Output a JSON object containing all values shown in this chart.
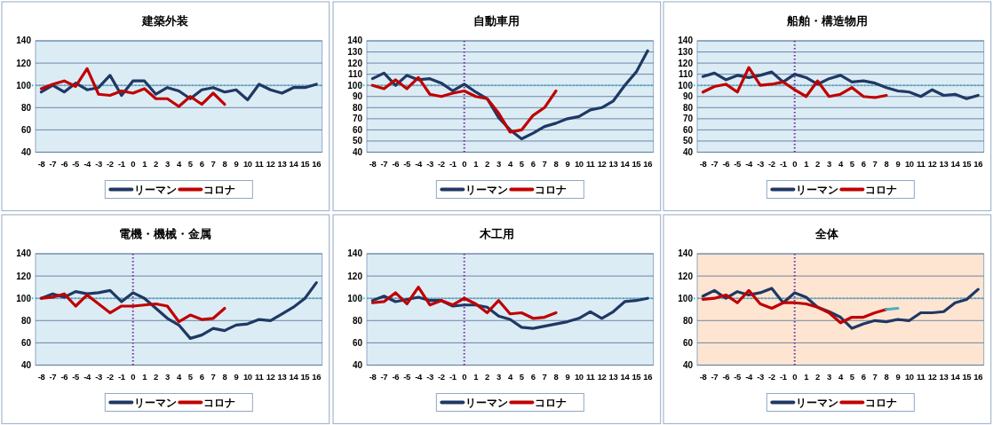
{
  "chart_data": [
    {
      "type": "line",
      "title": "建築外装",
      "x": [
        -8,
        -7,
        -6,
        -5,
        -4,
        -3,
        -2,
        -1,
        0,
        1,
        2,
        3,
        4,
        5,
        6,
        7,
        8,
        9,
        10,
        11,
        12,
        13,
        14,
        15,
        16
      ],
      "xlim": [
        -8.5,
        16.5
      ],
      "xticks": [
        -8,
        -7,
        -6,
        -5,
        -4,
        -3,
        -2,
        -1,
        0,
        1,
        2,
        3,
        4,
        5,
        6,
        7,
        8,
        9,
        10,
        11,
        12,
        13,
        14,
        15,
        16
      ],
      "ylim": [
        40,
        140
      ],
      "yticks": [
        40,
        60,
        80,
        100,
        120,
        140
      ],
      "grid": "y",
      "legend": "bottom",
      "line_style": "solid",
      "series": [
        {
          "name": "リーマン",
          "color": "#1f3864",
          "values": [
            94,
            100,
            94,
            102,
            96,
            98,
            109,
            91,
            104,
            104,
            92,
            98,
            95,
            88,
            96,
            98,
            94,
            96,
            87,
            101,
            96,
            93,
            98,
            98,
            101
          ]
        },
        {
          "name": "コロナ",
          "color": "#c00000",
          "x": [
            -8,
            -7,
            -6,
            -5,
            -4,
            -3,
            -2,
            -1,
            0,
            1,
            2,
            3,
            4,
            5,
            6,
            7,
            8
          ],
          "values": [
            97,
            101,
            104,
            99,
            115,
            92,
            91,
            95,
            93,
            97,
            88,
            88,
            81,
            90,
            83,
            93,
            83
          ]
        }
      ],
      "ref_lines": [
        {
          "axis": "y",
          "value": 100,
          "color": "#4bacc6",
          "line_style": "dotted"
        }
      ]
    },
    {
      "type": "line",
      "title": "自動車用",
      "x": [
        -8,
        -7,
        -6,
        -5,
        -4,
        -3,
        -2,
        -1,
        0,
        1,
        2,
        3,
        4,
        5,
        6,
        7,
        8,
        9,
        10,
        11,
        12,
        13,
        14,
        15,
        16
      ],
      "xlim": [
        -8.5,
        16.5
      ],
      "xticks": [
        -8,
        -7,
        -6,
        -5,
        -4,
        -3,
        -2,
        -1,
        0,
        1,
        2,
        3,
        4,
        5,
        6,
        7,
        8,
        9,
        10,
        11,
        12,
        13,
        14,
        15,
        16
      ],
      "ylim": [
        40,
        140
      ],
      "yticks": [
        40,
        50,
        60,
        70,
        80,
        90,
        100,
        110,
        120,
        130,
        140
      ],
      "grid": "y",
      "legend": "bottom",
      "line_style": "solid",
      "series": [
        {
          "name": "リーマン",
          "color": "#1f3864",
          "values": [
            106,
            111,
            100,
            109,
            105,
            106,
            102,
            95,
            101,
            94,
            88,
            71,
            60,
            52,
            57,
            63,
            66,
            70,
            72,
            78,
            80,
            86,
            100,
            112,
            131
          ]
        },
        {
          "name": "コロナ",
          "color": "#c00000",
          "x": [
            -8,
            -7,
            -6,
            -5,
            -4,
            -3,
            -2,
            -1,
            0,
            1,
            2,
            3,
            4,
            5,
            6,
            7,
            8
          ],
          "values": [
            100,
            97,
            105,
            97,
            107,
            92,
            90,
            93,
            95,
            90,
            88,
            75,
            58,
            60,
            73,
            80,
            95
          ]
        }
      ],
      "ref_lines": [
        {
          "axis": "y",
          "value": 100,
          "color": "#4bacc6",
          "line_style": "dotted"
        },
        {
          "axis": "x",
          "value": 0,
          "color": "#7030a0",
          "line_style": "dotted"
        }
      ]
    },
    {
      "type": "line",
      "title": "船舶・構造物用",
      "x": [
        -8,
        -7,
        -6,
        -5,
        -4,
        -3,
        -2,
        -1,
        0,
        1,
        2,
        3,
        4,
        5,
        6,
        7,
        8,
        9,
        10,
        11,
        12,
        13,
        14,
        15,
        16
      ],
      "xlim": [
        -8.5,
        16.5
      ],
      "xticks": [
        -8,
        -7,
        -6,
        -5,
        -4,
        -3,
        -2,
        -1,
        0,
        1,
        2,
        3,
        4,
        5,
        6,
        7,
        8,
        9,
        10,
        11,
        12,
        13,
        14,
        15,
        16
      ],
      "ylim": [
        40,
        140
      ],
      "yticks": [
        40,
        50,
        60,
        70,
        80,
        90,
        100,
        110,
        120,
        130,
        140
      ],
      "grid": "y",
      "legend": "bottom",
      "line_style": "solid",
      "series": [
        {
          "name": "リーマン",
          "color": "#1f3864",
          "values": [
            108,
            111,
            105,
            109,
            107,
            109,
            112,
            103,
            110,
            107,
            101,
            106,
            109,
            103,
            104,
            102,
            98,
            95,
            94,
            90,
            96,
            91,
            92,
            88,
            91
          ]
        },
        {
          "name": "コロナ",
          "color": "#c00000",
          "x": [
            -8,
            -7,
            -6,
            -5,
            -4,
            -3,
            -2,
            -1,
            0,
            1,
            2,
            3,
            4,
            5,
            6,
            7,
            8
          ],
          "values": [
            94,
            99,
            101,
            94,
            116,
            100,
            101,
            103,
            96,
            90,
            104,
            90,
            92,
            98,
            90,
            89,
            91
          ]
        }
      ],
      "ref_lines": [
        {
          "axis": "y",
          "value": 100,
          "color": "#4bacc6",
          "line_style": "dotted"
        },
        {
          "axis": "x",
          "value": 0,
          "color": "#7030a0",
          "line_style": "dotted"
        }
      ]
    },
    {
      "type": "line",
      "title": "電機・機械・金属",
      "x": [
        -8,
        -7,
        -6,
        -5,
        -4,
        -3,
        -2,
        -1,
        0,
        1,
        2,
        3,
        4,
        5,
        6,
        7,
        8,
        9,
        10,
        11,
        12,
        13,
        14,
        15,
        16
      ],
      "xlim": [
        -8.5,
        16.5
      ],
      "xticks": [
        -8,
        -7,
        -6,
        -5,
        -4,
        -3,
        -2,
        -1,
        0,
        1,
        2,
        3,
        4,
        5,
        6,
        7,
        8,
        9,
        10,
        11,
        12,
        13,
        14,
        15,
        16
      ],
      "ylim": [
        40,
        140
      ],
      "yticks": [
        40,
        60,
        80,
        100,
        120,
        140
      ],
      "grid": "y",
      "legend": "bottom",
      "line_style": "solid",
      "series": [
        {
          "name": "リーマン",
          "color": "#1f3864",
          "values": [
            100,
            104,
            101,
            106,
            104,
            105,
            107,
            97,
            105,
            100,
            91,
            82,
            76,
            64,
            67,
            73,
            71,
            76,
            77,
            81,
            80,
            86,
            92,
            100,
            114
          ]
        },
        {
          "name": "コロナ",
          "color": "#c00000",
          "x": [
            -8,
            -7,
            -6,
            -5,
            -4,
            -3,
            -2,
            -1,
            0,
            1,
            2,
            3,
            4,
            5,
            6,
            7,
            8
          ],
          "values": [
            100,
            101,
            104,
            93,
            103,
            95,
            87,
            93,
            93,
            94,
            95,
            93,
            79,
            85,
            81,
            82,
            91
          ]
        }
      ],
      "ref_lines": [
        {
          "axis": "y",
          "value": 100,
          "color": "#4bacc6",
          "line_style": "dotted"
        },
        {
          "axis": "x",
          "value": 0,
          "color": "#7030a0",
          "line_style": "dotted"
        }
      ]
    },
    {
      "type": "line",
      "title": "木工用",
      "x": [
        -8,
        -7,
        -6,
        -5,
        -4,
        -3,
        -2,
        -1,
        0,
        1,
        2,
        3,
        4,
        5,
        6,
        7,
        8,
        9,
        10,
        11,
        12,
        13,
        14,
        15,
        16
      ],
      "xlim": [
        -8.5,
        16.5
      ],
      "xticks": [
        -8,
        -7,
        -6,
        -5,
        -4,
        -3,
        -2,
        -1,
        0,
        1,
        2,
        3,
        4,
        5,
        6,
        7,
        8,
        9,
        10,
        11,
        12,
        13,
        14,
        15,
        16
      ],
      "ylim": [
        40,
        140
      ],
      "yticks": [
        40,
        60,
        80,
        100,
        120,
        140
      ],
      "grid": "y",
      "legend": "bottom",
      "line_style": "solid",
      "series": [
        {
          "name": "リーマン",
          "color": "#1f3864",
          "values": [
            98,
            102,
            97,
            99,
            101,
            98,
            98,
            93,
            94,
            94,
            92,
            84,
            81,
            74,
            73,
            75,
            77,
            79,
            82,
            88,
            82,
            88,
            97,
            98,
            100
          ]
        },
        {
          "name": "コロナ",
          "color": "#c00000",
          "x": [
            -8,
            -7,
            -6,
            -5,
            -4,
            -3,
            -2,
            -1,
            0,
            1,
            2,
            3,
            4,
            5,
            6,
            7,
            8
          ],
          "values": [
            96,
            97,
            105,
            95,
            110,
            94,
            98,
            94,
            100,
            95,
            87,
            98,
            86,
            87,
            82,
            83,
            87
          ]
        }
      ],
      "ref_lines": [
        {
          "axis": "y",
          "value": 100,
          "color": "#4bacc6",
          "line_style": "dotted"
        },
        {
          "axis": "x",
          "value": 0,
          "color": "#7030a0",
          "line_style": "dotted"
        }
      ]
    },
    {
      "type": "line",
      "title": "全体",
      "x": [
        -8,
        -7,
        -6,
        -5,
        -4,
        -3,
        -2,
        -1,
        0,
        1,
        2,
        3,
        4,
        5,
        6,
        7,
        8,
        9,
        10,
        11,
        12,
        13,
        14,
        15,
        16
      ],
      "xlim": [
        -8.5,
        16.5
      ],
      "xticks": [
        -8,
        -7,
        -6,
        -5,
        -4,
        -3,
        -2,
        -1,
        0,
        1,
        2,
        3,
        4,
        5,
        6,
        7,
        8,
        9,
        10,
        11,
        12,
        13,
        14,
        15,
        16
      ],
      "ylim": [
        40,
        140
      ],
      "yticks": [
        40,
        60,
        80,
        100,
        120,
        140
      ],
      "grid": "y",
      "legend": "bottom",
      "line_style": "solid",
      "series": [
        {
          "name": "リーマン",
          "color": "#1f3864",
          "values": [
            102,
            107,
            100,
            106,
            103,
            105,
            109,
            96,
            105,
            101,
            92,
            88,
            83,
            73,
            77,
            80,
            79,
            81,
            80,
            87,
            87,
            88,
            96,
            99,
            108
          ]
        },
        {
          "name": "コロナ",
          "color": "#c00000",
          "x": [
            -8,
            -7,
            -6,
            -5,
            -4,
            -3,
            -2,
            -1,
            0,
            1,
            2,
            3,
            4,
            5,
            6,
            7,
            8
          ],
          "values": [
            99,
            100,
            103,
            96,
            107,
            95,
            91,
            96,
            96,
            95,
            92,
            87,
            78,
            83,
            83,
            87,
            90
          ]
        },
        {
          "color": "#4bacc6",
          "x": [
            8,
            9
          ],
          "values": [
            90,
            91
          ]
        }
      ],
      "ref_lines": [
        {
          "axis": "y",
          "value": 100,
          "color": "#4bacc6",
          "line_style": "dotted"
        },
        {
          "axis": "x",
          "value": 0,
          "color": "#7030a0",
          "line_style": "dotted"
        }
      ]
    }
  ]
}
